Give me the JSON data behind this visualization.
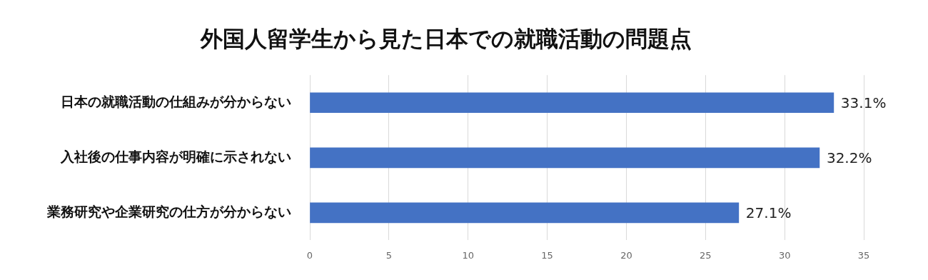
{
  "chart_data": {
    "type": "bar",
    "orientation": "horizontal",
    "title": "外国人留学生から見た日本での就職活動の問題点",
    "categories": [
      "日本の就職活動の仕組みが分からない",
      "入社後の仕事内容が明確に示されない",
      "業務研究や企業研究の仕方が分からない"
    ],
    "values": [
      33.1,
      32.2,
      27.1
    ],
    "value_labels": [
      "33.1%",
      "32.2%",
      "27.1%"
    ],
    "color": "#4472c4",
    "xlim": [
      0,
      35
    ],
    "xticks": [
      0,
      5,
      10,
      15,
      20,
      25,
      30,
      35
    ],
    "grid": "x",
    "legend": false
  }
}
